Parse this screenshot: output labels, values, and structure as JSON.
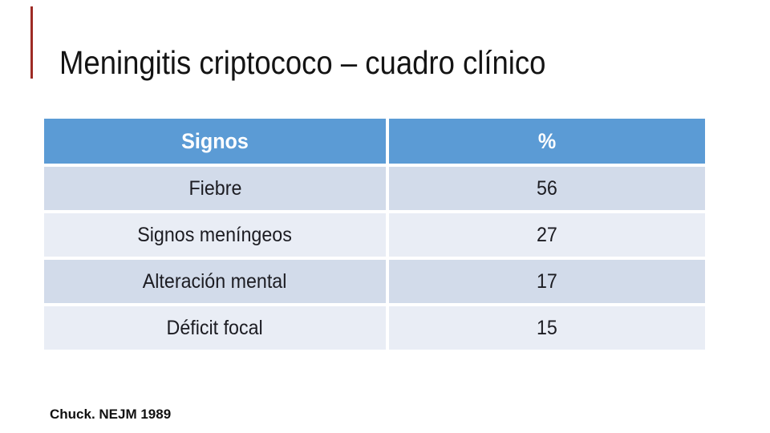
{
  "slide": {
    "title": "Meningitis criptococo – cuadro clínico",
    "citation": "Chuck. NEJM 1989",
    "colors": {
      "accent": "#9e2b25",
      "header-bg": "#5b9bd5",
      "band-dark": "#d2dbea",
      "band-light": "#e9edf5"
    },
    "table": {
      "headers": [
        "Signos",
        "%"
      ],
      "rows": [
        {
          "label": "Fiebre",
          "value": "56"
        },
        {
          "label": "Signos meníngeos",
          "value": "27"
        },
        {
          "label": "Alteración mental",
          "value": "17"
        },
        {
          "label": "Déficit focal",
          "value": "15"
        }
      ]
    }
  },
  "chart_data": {
    "type": "table",
    "title": "Meningitis criptococo – cuadro clínico",
    "columns": [
      "Signos",
      "%"
    ],
    "categories": [
      "Fiebre",
      "Signos meníngeos",
      "Alteración mental",
      "Déficit focal"
    ],
    "values": [
      56,
      27,
      17,
      15
    ],
    "source": "Chuck. NEJM 1989"
  }
}
